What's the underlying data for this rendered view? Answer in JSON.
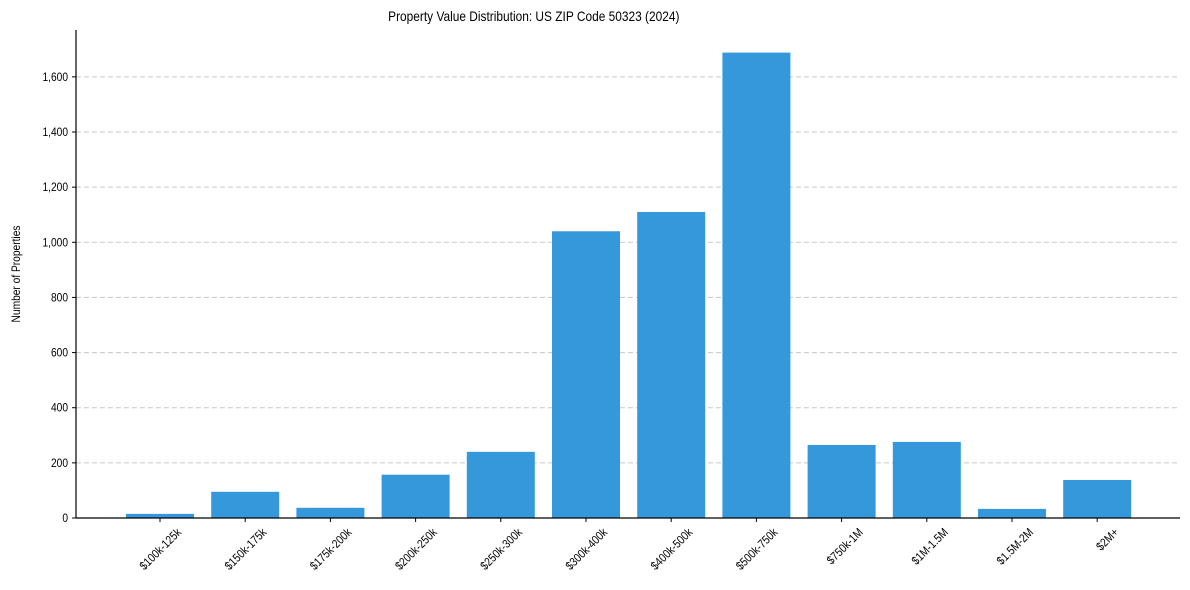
{
  "chart_data": {
    "type": "bar",
    "title": "Property Value Distribution: US ZIP Code 50323 (2024)",
    "xlabel": "",
    "ylabel": "Number of Properties",
    "categories": [
      "$100k-125k",
      "$150k-175k",
      "$175k-200k",
      "$200k-250k",
      "$250k-300k",
      "$300k-400k",
      "$400k-500k",
      "$500k-750k",
      "$750k-1M",
      "$1M-1.5M",
      "$1.5M-2M",
      "$2M+"
    ],
    "values": [
      15,
      95,
      37,
      157,
      240,
      1040,
      1110,
      1688,
      265,
      276,
      33,
      138
    ],
    "ylim": [
      0,
      1770
    ],
    "yticks": [
      0,
      200,
      400,
      600,
      800,
      1000,
      1200,
      1400,
      1600
    ],
    "ytick_labels": [
      "0",
      "200",
      "400",
      "600",
      "800",
      "1,000",
      "1,200",
      "1,400",
      "1,600"
    ],
    "grid": {
      "y": true,
      "x": false,
      "style": "dashed"
    },
    "legend": null,
    "bar_color": "#3498db"
  }
}
